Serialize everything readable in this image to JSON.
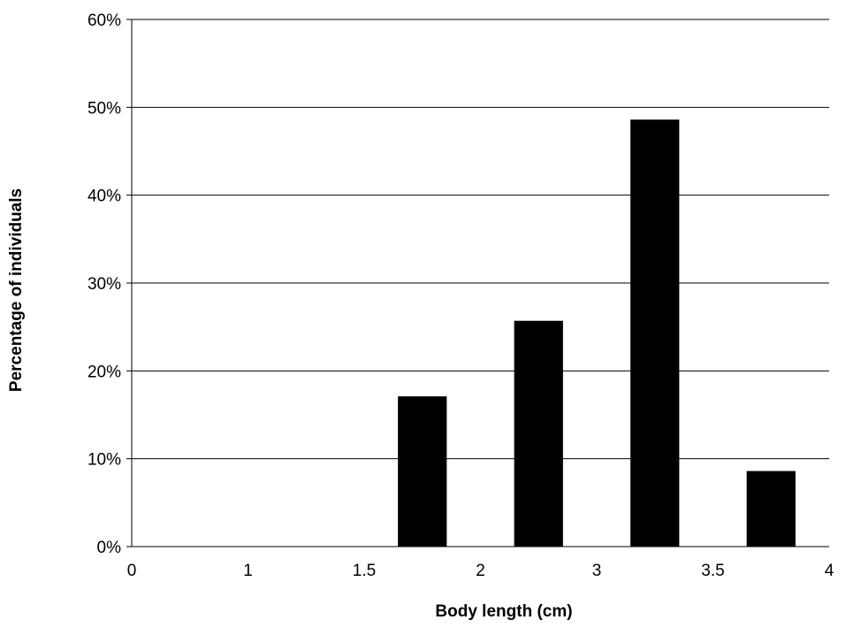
{
  "chart_data": {
    "type": "bar",
    "xlabel": "Body length (cm)",
    "ylabel": "Percentage of individuals",
    "x_ticks": [
      "0",
      "1",
      "1.5",
      "2",
      "3",
      "3.5",
      "4"
    ],
    "y_ticks": [
      "0%",
      "10%",
      "20%",
      "30%",
      "40%",
      "50%",
      "60%"
    ],
    "ylim": [
      0,
      60
    ],
    "grid": "horizontal",
    "bars": [
      {
        "category": "1.5",
        "value": 17.1
      },
      {
        "category": "2",
        "value": 25.7
      },
      {
        "category": "3",
        "value": 48.6
      },
      {
        "category": "3.5",
        "value": 8.6
      }
    ],
    "colors": {
      "bar": "#000000",
      "grid": "#000000",
      "background": "#ffffff"
    }
  }
}
